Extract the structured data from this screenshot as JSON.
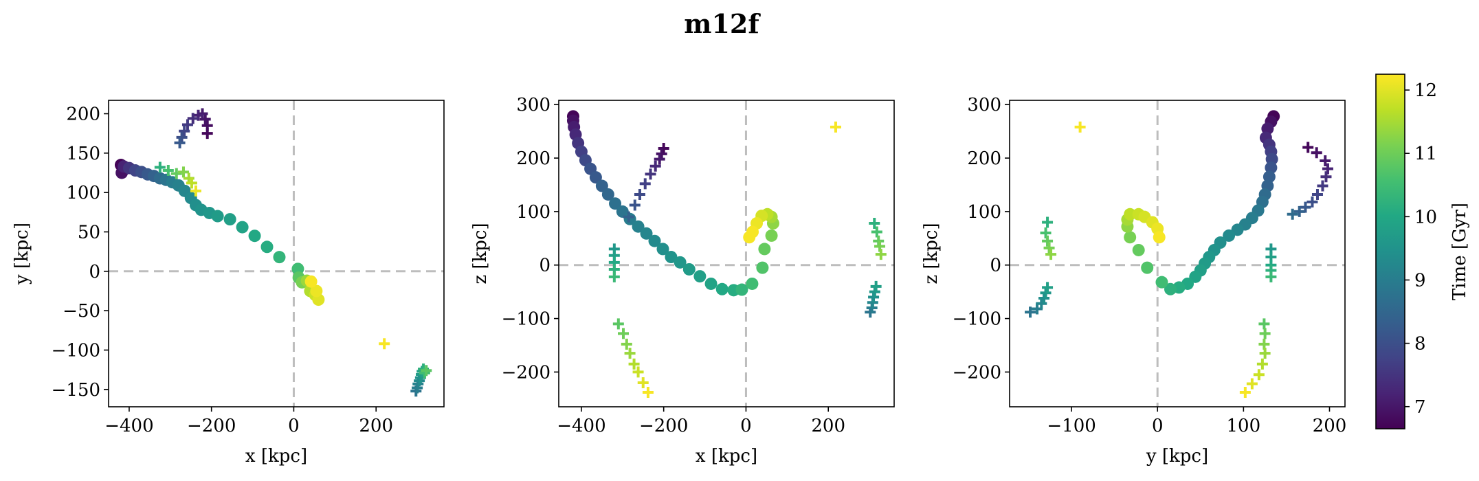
{
  "title": "m12f",
  "colorbar": {
    "label": "Time [Gyr]",
    "ticks": [
      "7",
      "8",
      "9",
      "10",
      "11",
      "12"
    ],
    "range": [
      6.65,
      12.25
    ],
    "colormap": "viridis"
  },
  "chart_data": [
    {
      "type": "scatter",
      "xlabel": "x [kpc]",
      "ylabel": "y [kpc]",
      "xlim": [
        -450,
        365
      ],
      "ylim": [
        -172,
        217
      ],
      "xticks": [
        "-400",
        "-200",
        "0",
        "200"
      ],
      "yticks": [
        "-150",
        "-100",
        "-50",
        "0",
        "50",
        "100",
        "150",
        "200"
      ],
      "grid": false,
      "reference_lines": {
        "x": 0,
        "y": 0
      },
      "series": [
        {
          "marker": "circle",
          "points": [
            [
              -420,
              135,
              6.7
            ],
            [
              -418,
              125,
              6.9
            ],
            [
              -413,
              133,
              7.2
            ],
            [
              -400,
              131,
              7.5
            ],
            [
              -385,
              128,
              7.8
            ],
            [
              -370,
              126,
              8.0
            ],
            [
              -355,
              123,
              8.2
            ],
            [
              -340,
              121,
              8.4
            ],
            [
              -325,
              118,
              8.6
            ],
            [
              -310,
              116,
              8.8
            ],
            [
              -295,
              113,
              9.0
            ],
            [
              -280,
              109,
              9.1
            ],
            [
              -265,
              102,
              9.2
            ],
            [
              -250,
              93,
              9.3
            ],
            [
              -238,
              84,
              9.4
            ],
            [
              -225,
              78,
              9.5
            ],
            [
              -205,
              74,
              9.6
            ],
            [
              -185,
              70,
              9.7
            ],
            [
              -155,
              66,
              9.8
            ],
            [
              -125,
              56,
              9.9
            ],
            [
              -95,
              45,
              10.0
            ],
            [
              -65,
              31,
              10.1
            ],
            [
              -35,
              18,
              10.3
            ],
            [
              10,
              3,
              10.5
            ],
            [
              12,
              -8,
              10.8
            ],
            [
              20,
              -14,
              11.1
            ],
            [
              32,
              -12,
              11.4
            ],
            [
              40,
              -25,
              11.6
            ],
            [
              52,
              -30,
              11.8
            ],
            [
              60,
              -36,
              12.0
            ],
            [
              55,
              -25,
              12.1
            ],
            [
              42,
              -13,
              12.2
            ]
          ]
        },
        {
          "marker": "plus",
          "points": [
            [
              -210,
              175,
              6.75
            ],
            [
              -210,
              185,
              6.85
            ],
            [
              -215,
              193,
              6.95
            ],
            [
              -222,
              200,
              7.05
            ],
            [
              -232,
              198,
              7.2
            ],
            [
              -245,
              194,
              7.4
            ],
            [
              -258,
              186,
              7.6
            ],
            [
              -266,
              178,
              7.8
            ],
            [
              -272,
              170,
              8.0
            ],
            [
              -277,
              163,
              8.2
            ],
            [
              -325,
              132,
              10.2
            ],
            [
              -305,
              128,
              10.6
            ],
            [
              -285,
              124,
              10.9
            ],
            [
              -268,
              126,
              11.2
            ],
            [
              -255,
              118,
              11.5
            ],
            [
              -248,
              112,
              11.7
            ],
            [
              -238,
              102,
              12.1
            ],
            [
              220,
              -92,
              12.2
            ],
            [
              297,
              -152,
              8.8
            ],
            [
              300,
              -148,
              9.0
            ],
            [
              302,
              -143,
              9.1
            ],
            [
              305,
              -139,
              9.3
            ],
            [
              308,
              -135,
              9.5
            ],
            [
              310,
              -131,
              9.7
            ],
            [
              312,
              -127,
              9.9
            ],
            [
              315,
              -124,
              10.2
            ],
            [
              318,
              -129,
              10.5
            ],
            [
              322,
              -126,
              10.8
            ]
          ]
        }
      ]
    },
    {
      "type": "scatter",
      "xlabel": "x [kpc]",
      "ylabel": "z [kpc]",
      "xlim": [
        -455,
        360
      ],
      "ylim": [
        -265,
        308
      ],
      "xticks": [
        "-400",
        "-200",
        "0",
        "200"
      ],
      "yticks": [
        "-200",
        "-100",
        "0",
        "100",
        "200",
        "300"
      ],
      "grid": false,
      "reference_lines": {
        "x": 0,
        "y": 0
      },
      "series": [
        {
          "marker": "circle",
          "points": [
            [
              -420,
              278,
              6.7
            ],
            [
              -420,
              270,
              6.9
            ],
            [
              -418,
              258,
              7.1
            ],
            [
              -414,
              244,
              7.3
            ],
            [
              -408,
              228,
              7.5
            ],
            [
              -400,
              212,
              7.7
            ],
            [
              -390,
              196,
              7.9
            ],
            [
              -378,
              180,
              8.1
            ],
            [
              -365,
              164,
              8.2
            ],
            [
              -350,
              148,
              8.4
            ],
            [
              -335,
              132,
              8.5
            ],
            [
              -318,
              115,
              8.7
            ],
            [
              -300,
              100,
              8.8
            ],
            [
              -282,
              86,
              9.0
            ],
            [
              -262,
              72,
              9.1
            ],
            [
              -242,
              59,
              9.2
            ],
            [
              -222,
              45,
              9.3
            ],
            [
              -202,
              30,
              9.4
            ],
            [
              -182,
              15,
              9.5
            ],
            [
              -160,
              5,
              9.6
            ],
            [
              -138,
              -8,
              9.7
            ],
            [
              -112,
              -21,
              9.8
            ],
            [
              -85,
              -35,
              9.9
            ],
            [
              -58,
              -45,
              10.0
            ],
            [
              -30,
              -47,
              10.1
            ],
            [
              -10,
              -46,
              10.3
            ],
            [
              15,
              -35,
              10.5
            ],
            [
              40,
              -5,
              10.7
            ],
            [
              45,
              30,
              10.9
            ],
            [
              62,
              55,
              11.1
            ],
            [
              66,
              78,
              11.3
            ],
            [
              62,
              90,
              11.5
            ],
            [
              52,
              95,
              11.7
            ],
            [
              38,
              92,
              11.9
            ],
            [
              26,
              78,
              12.1
            ],
            [
              16,
              62,
              12.2
            ],
            [
              8,
              52,
              12.2
            ]
          ]
        },
        {
          "marker": "plus",
          "points": [
            [
              -200,
              218,
              6.75
            ],
            [
              -205,
              208,
              6.9
            ],
            [
              -210,
              198,
              7.05
            ],
            [
              -220,
              185,
              7.3
            ],
            [
              -232,
              170,
              7.5
            ],
            [
              -245,
              152,
              7.7
            ],
            [
              -258,
              132,
              7.9
            ],
            [
              -270,
              112,
              8.1
            ],
            [
              -285,
              90,
              8.4
            ],
            [
              -320,
              30,
              9.6
            ],
            [
              -320,
              18,
              9.8
            ],
            [
              -320,
              5,
              10.0
            ],
            [
              -320,
              -8,
              10.2
            ],
            [
              -320,
              -22,
              10.4
            ],
            [
              -310,
              -110,
              10.8
            ],
            [
              -298,
              -128,
              11.0
            ],
            [
              -290,
              -148,
              11.2
            ],
            [
              -282,
              -165,
              11.4
            ],
            [
              -272,
              -185,
              11.6
            ],
            [
              -262,
              -200,
              11.8
            ],
            [
              -250,
              -220,
              12.0
            ],
            [
              -238,
              -238,
              12.2
            ],
            [
              218,
              258,
              12.2
            ],
            [
              312,
              78,
              10.2
            ],
            [
              318,
              62,
              10.6
            ],
            [
              322,
              45,
              10.9
            ],
            [
              325,
              35,
              11.1
            ],
            [
              328,
              20,
              11.3
            ],
            [
              302,
              -88,
              8.8
            ],
            [
              306,
              -80,
              9.0
            ],
            [
              308,
              -70,
              9.2
            ],
            [
              310,
              -60,
              9.4
            ],
            [
              313,
              -50,
              9.6
            ],
            [
              316,
              -40,
              9.8
            ]
          ]
        }
      ]
    },
    {
      "type": "scatter",
      "xlabel": "y [kpc]",
      "ylabel": "z [kpc]",
      "xlim": [
        -172,
        218
      ],
      "ylim": [
        -265,
        308
      ],
      "xticks": [
        "-100",
        "0",
        "100",
        "200"
      ],
      "yticks": [
        "-200",
        "-100",
        "0",
        "100",
        "200",
        "300"
      ],
      "grid": false,
      "reference_lines": {
        "x": 0,
        "y": 0
      },
      "series": [
        {
          "marker": "circle",
          "points": [
            [
              135,
              278,
              6.7
            ],
            [
              132,
              268,
              6.9
            ],
            [
              128,
              255,
              7.1
            ],
            [
              126,
              238,
              7.3
            ],
            [
              130,
              225,
              7.5
            ],
            [
              132,
              212,
              7.7
            ],
            [
              133,
              198,
              7.9
            ],
            [
              132,
              182,
              8.1
            ],
            [
              130,
              165,
              8.3
            ],
            [
              128,
              148,
              8.4
            ],
            [
              125,
              132,
              8.6
            ],
            [
              122,
              118,
              8.7
            ],
            [
              117,
              102,
              8.9
            ],
            [
              110,
              88,
              9.0
            ],
            [
              102,
              76,
              9.1
            ],
            [
              93,
              66,
              9.2
            ],
            [
              83,
              55,
              9.3
            ],
            [
              73,
              42,
              9.4
            ],
            [
              66,
              28,
              9.5
            ],
            [
              60,
              15,
              9.6
            ],
            [
              55,
              3,
              9.7
            ],
            [
              50,
              -10,
              9.8
            ],
            [
              44,
              -22,
              9.9
            ],
            [
              35,
              -35,
              10.0
            ],
            [
              25,
              -42,
              10.1
            ],
            [
              15,
              -45,
              10.2
            ],
            [
              5,
              -32,
              10.5
            ],
            [
              -12,
              -5,
              10.7
            ],
            [
              -22,
              28,
              10.9
            ],
            [
              -32,
              52,
              11.1
            ],
            [
              -35,
              72,
              11.3
            ],
            [
              -35,
              85,
              11.5
            ],
            [
              -32,
              95,
              11.7
            ],
            [
              -22,
              95,
              11.8
            ],
            [
              -15,
              90,
              11.9
            ],
            [
              -6,
              80,
              12.0
            ],
            [
              0,
              68,
              12.1
            ],
            [
              2,
              52,
              12.2
            ]
          ]
        },
        {
          "marker": "plus",
          "points": [
            [
              175,
              220,
              6.75
            ],
            [
              185,
              210,
              6.9
            ],
            [
              195,
              195,
              7.05
            ],
            [
              198,
              180,
              7.2
            ],
            [
              196,
              165,
              7.4
            ],
            [
              192,
              148,
              7.6
            ],
            [
              186,
              132,
              7.8
            ],
            [
              180,
              118,
              8.0
            ],
            [
              172,
              108,
              8.2
            ],
            [
              165,
              100,
              8.4
            ],
            [
              157,
              95,
              8.6
            ],
            [
              -128,
              80,
              10.2
            ],
            [
              -130,
              60,
              10.6
            ],
            [
              -128,
              45,
              10.9
            ],
            [
              -126,
              32,
              11.1
            ],
            [
              -124,
              20,
              11.3
            ],
            [
              -148,
              -88,
              8.8
            ],
            [
              -140,
              -82,
              9.0
            ],
            [
              -135,
              -72,
              9.2
            ],
            [
              -132,
              -62,
              9.4
            ],
            [
              -130,
              -52,
              9.6
            ],
            [
              -128,
              -42,
              9.8
            ],
            [
              -90,
              258,
              12.2
            ],
            [
              132,
              30,
              9.6
            ],
            [
              132,
              15,
              9.8
            ],
            [
              132,
              0,
              10.0
            ],
            [
              132,
              -10,
              10.2
            ],
            [
              132,
              -22,
              10.4
            ],
            [
              124,
              -110,
              10.8
            ],
            [
              125,
              -128,
              11.0
            ],
            [
              124,
              -148,
              11.2
            ],
            [
              125,
              -165,
              11.4
            ],
            [
              122,
              -185,
              11.6
            ],
            [
              118,
              -205,
              11.8
            ],
            [
              110,
              -222,
              12.0
            ],
            [
              102,
              -238,
              12.2
            ]
          ]
        }
      ]
    }
  ]
}
